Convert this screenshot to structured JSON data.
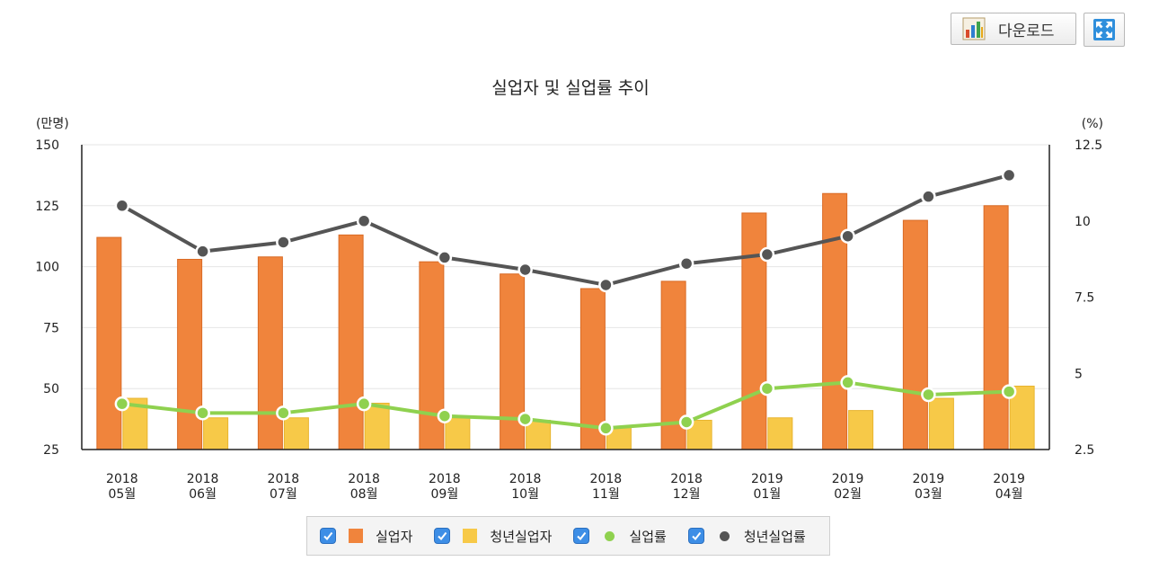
{
  "toolbar": {
    "download_label": "다운로드",
    "download_icon": "bar-chart-icon",
    "fullscreen_icon": "fullscreen-icon"
  },
  "chart_data": {
    "type": "bar+line",
    "title": "실업자 및 실업률 추이",
    "y_left_label": "(만명)",
    "y_right_label": "(%)",
    "y_left_range": [
      25,
      150
    ],
    "y_left_ticks": [
      "150",
      "125",
      "100",
      "75",
      "50",
      "25"
    ],
    "y_right_range": [
      2.5,
      12.5
    ],
    "y_right_ticks": [
      "12.5",
      "10",
      "7.5",
      "5",
      "2.5"
    ],
    "categories": [
      [
        "2018",
        "05월"
      ],
      [
        "2018",
        "06월"
      ],
      [
        "2018",
        "07월"
      ],
      [
        "2018",
        "08월"
      ],
      [
        "2018",
        "09월"
      ],
      [
        "2018",
        "10월"
      ],
      [
        "2018",
        "11월"
      ],
      [
        "2018",
        "12월"
      ],
      [
        "2019",
        "01월"
      ],
      [
        "2019",
        "02월"
      ],
      [
        "2019",
        "03월"
      ],
      [
        "2019",
        "04월"
      ]
    ],
    "series": [
      {
        "name": "실업자",
        "kind": "bar",
        "axis": "left",
        "color": "#f0843c",
        "values": [
          112,
          103,
          104,
          113,
          102,
          97,
          91,
          94,
          122,
          130,
          119,
          125
        ]
      },
      {
        "name": "청년실업자",
        "kind": "bar",
        "axis": "left",
        "color": "#f7c948",
        "values": [
          46,
          38,
          38,
          44,
          38,
          37,
          34,
          37,
          38,
          41,
          46,
          51
        ]
      },
      {
        "name": "실업률",
        "kind": "line",
        "axis": "right",
        "color": "#8fd14f",
        "values": [
          4.0,
          3.7,
          3.7,
          4.0,
          3.6,
          3.5,
          3.2,
          3.4,
          4.5,
          4.7,
          4.3,
          4.4
        ]
      },
      {
        "name": "청년실업률",
        "kind": "line",
        "axis": "right",
        "color": "#555555",
        "values": [
          10.5,
          9.0,
          9.3,
          10.0,
          8.8,
          8.4,
          7.9,
          8.6,
          8.9,
          9.5,
          10.8,
          11.5
        ]
      }
    ],
    "legend_position": "bottom-center"
  }
}
